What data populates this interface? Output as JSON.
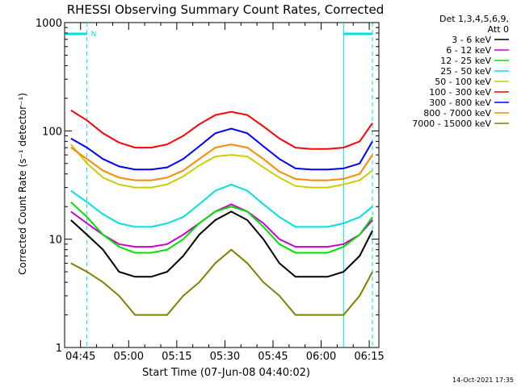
{
  "chart_data": {
    "type": "line",
    "title": "RHESSI Observing Summary Count Rates, Corrected",
    "xlabel": "Start Time (07-Jun-08 04:40:02)",
    "ylabel": "Corrected Count Rate (s⁻¹ detector⁻¹)",
    "y_scale": "log",
    "ylim": [
      1,
      1000
    ],
    "xlim": [
      "04:40:02",
      "06:18:00"
    ],
    "x_ticks": [
      "04:45",
      "05:00",
      "05:15",
      "05:30",
      "05:45",
      "06:00",
      "06:15"
    ],
    "y_ticks": [
      "1",
      "10",
      "100",
      "1000"
    ],
    "legend_position": "right",
    "legend_header": [
      "Det 1,3,4,5,6,9,",
      "Att 0"
    ],
    "footer_date": "14-Oct-2021 17:35",
    "flag_label": "N",
    "x": [
      "04:42",
      "04:47",
      "04:52",
      "04:57",
      "05:02",
      "05:07",
      "05:12",
      "05:17",
      "05:22",
      "05:27",
      "05:32",
      "05:37",
      "05:42",
      "05:47",
      "05:52",
      "05:57",
      "06:02",
      "06:07",
      "06:12",
      "06:16"
    ],
    "series": [
      {
        "name": "3 - 6 keV",
        "color": "#000000",
        "values": [
          15,
          11,
          8,
          5,
          4.5,
          4.5,
          5,
          7,
          11,
          15,
          18,
          15,
          10,
          6,
          4.5,
          4.5,
          4.5,
          5,
          7,
          12
        ]
      },
      {
        "name": "6 - 12 keV",
        "color": "#cc00cc",
        "values": [
          18,
          14,
          11,
          9,
          8.5,
          8.5,
          9,
          11,
          14,
          18,
          21,
          18,
          14,
          10,
          8.5,
          8.5,
          8.5,
          9,
          11,
          15
        ]
      },
      {
        "name": "12 - 25 keV",
        "color": "#00e000",
        "values": [
          22,
          16,
          11,
          8.5,
          7.5,
          7.5,
          8,
          10,
          14,
          18,
          20,
          18,
          13,
          9,
          7.5,
          7.5,
          7.5,
          8.5,
          11,
          16
        ]
      },
      {
        "name": "25 - 50 keV",
        "color": "#00e0e0",
        "values": [
          28,
          22,
          17,
          14,
          13,
          13,
          14,
          16,
          21,
          28,
          32,
          28,
          21,
          16,
          13,
          13,
          13,
          14,
          16,
          20
        ]
      },
      {
        "name": "50 - 100 keV",
        "color": "#cccc00",
        "values": [
          75,
          50,
          37,
          32,
          30,
          30,
          32,
          38,
          48,
          58,
          60,
          58,
          46,
          37,
          31,
          30,
          30,
          32,
          35,
          43
        ]
      },
      {
        "name": "100 - 300 keV",
        "color": "#ff0000",
        "values": [
          155,
          125,
          95,
          78,
          70,
          70,
          75,
          90,
          115,
          140,
          150,
          140,
          110,
          85,
          70,
          68,
          68,
          70,
          80,
          118
        ]
      },
      {
        "name": "300 - 800 keV",
        "color": "#0000ff",
        "values": [
          85,
          70,
          55,
          47,
          44,
          44,
          46,
          55,
          72,
          95,
          105,
          95,
          72,
          55,
          45,
          44,
          44,
          45,
          50,
          80
        ]
      },
      {
        "name": "800 - 7000 keV",
        "color": "#ff8800",
        "values": [
          70,
          55,
          43,
          37,
          35,
          35,
          37,
          43,
          55,
          70,
          75,
          70,
          55,
          42,
          36,
          35,
          35,
          36,
          40,
          60
        ]
      },
      {
        "name": "7000 - 15000 keV",
        "color": "#808000",
        "values": [
          6,
          5,
          4,
          3,
          2,
          2,
          2,
          3,
          4,
          6,
          8,
          6,
          4,
          3,
          2,
          2,
          2,
          2,
          3,
          5
        ]
      }
    ],
    "annotations": [
      {
        "type": "attenuator-bar",
        "color": "#00e0e0",
        "from": "04:40:02",
        "to": "04:47:00"
      },
      {
        "type": "attenuator-bar",
        "color": "#00e0e0",
        "from": "06:07:00",
        "to": "06:16:00"
      },
      {
        "type": "vertical-line",
        "style": "dashed",
        "color": "#00e0e0",
        "at": "04:47:00"
      },
      {
        "type": "vertical-line",
        "style": "solid",
        "color": "#00e0e0",
        "at": "06:07:00"
      },
      {
        "type": "vertical-line",
        "style": "dashed",
        "color": "#00e0e0",
        "at": "06:16:00"
      }
    ]
  }
}
